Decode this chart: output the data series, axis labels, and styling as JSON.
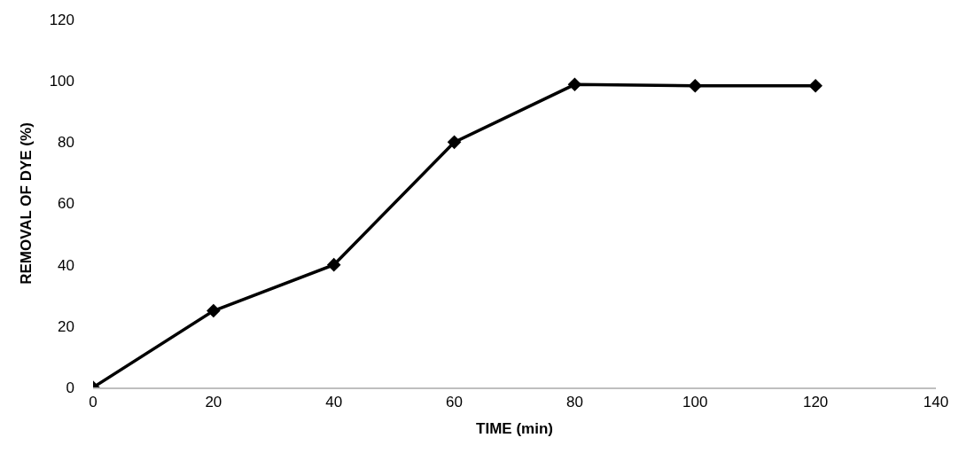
{
  "chart_data": {
    "type": "line",
    "xlabel": "TIME (min)",
    "ylabel": "REMOVAL OF DYE (%)",
    "x": [
      0,
      20,
      40,
      60,
      80,
      100,
      120
    ],
    "series": [
      {
        "color": "#000000",
        "values": [
          0,
          25,
          40,
          80,
          98.8,
          98.4,
          98.4
        ]
      }
    ],
    "xlim": [
      0,
      140
    ],
    "xticks": [
      0,
      20,
      40,
      60,
      80,
      100,
      120,
      140
    ],
    "ylim": [
      0,
      120
    ],
    "yticks": [
      0,
      20,
      40,
      60,
      80,
      100,
      120
    ],
    "grid": false,
    "marker": "diamond",
    "line_style": "solid"
  }
}
